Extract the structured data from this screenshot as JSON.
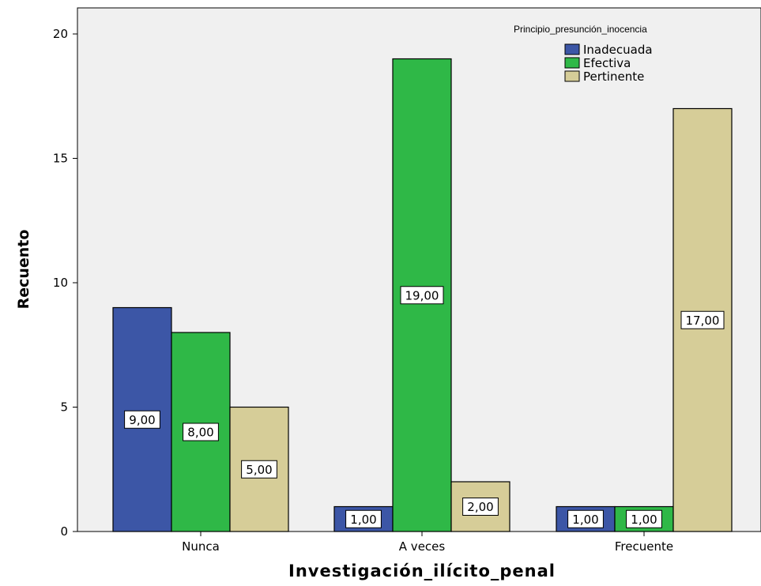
{
  "chart_data": {
    "type": "bar",
    "title": "",
    "xlabel": "Investigación_ilícito_penal",
    "ylabel": "Recuento",
    "categories": [
      "Nunca",
      "A veces",
      "Frecuente"
    ],
    "series": [
      {
        "name": "Inadecuada",
        "values": [
          9,
          1,
          1
        ],
        "labels": [
          "9,00",
          "1,00",
          "1,00"
        ],
        "color": "#3c56a6"
      },
      {
        "name": "Efectiva",
        "values": [
          8,
          19,
          1
        ],
        "labels": [
          "8,00",
          "19,00",
          "1,00"
        ],
        "color": "#2fb847"
      },
      {
        "name": "Pertinente",
        "values": [
          5,
          2,
          17
        ],
        "labels": [
          "5,00",
          "2,00",
          "17,00"
        ],
        "color": "#d6cd98"
      }
    ],
    "ylim": [
      0,
      21
    ],
    "yticks": [
      0,
      5,
      10,
      15,
      20
    ],
    "grid": false,
    "legend_title": "Principio_presunción_inocencia",
    "legend_position": "top-right",
    "plot_background": "#f0f0f0"
  }
}
